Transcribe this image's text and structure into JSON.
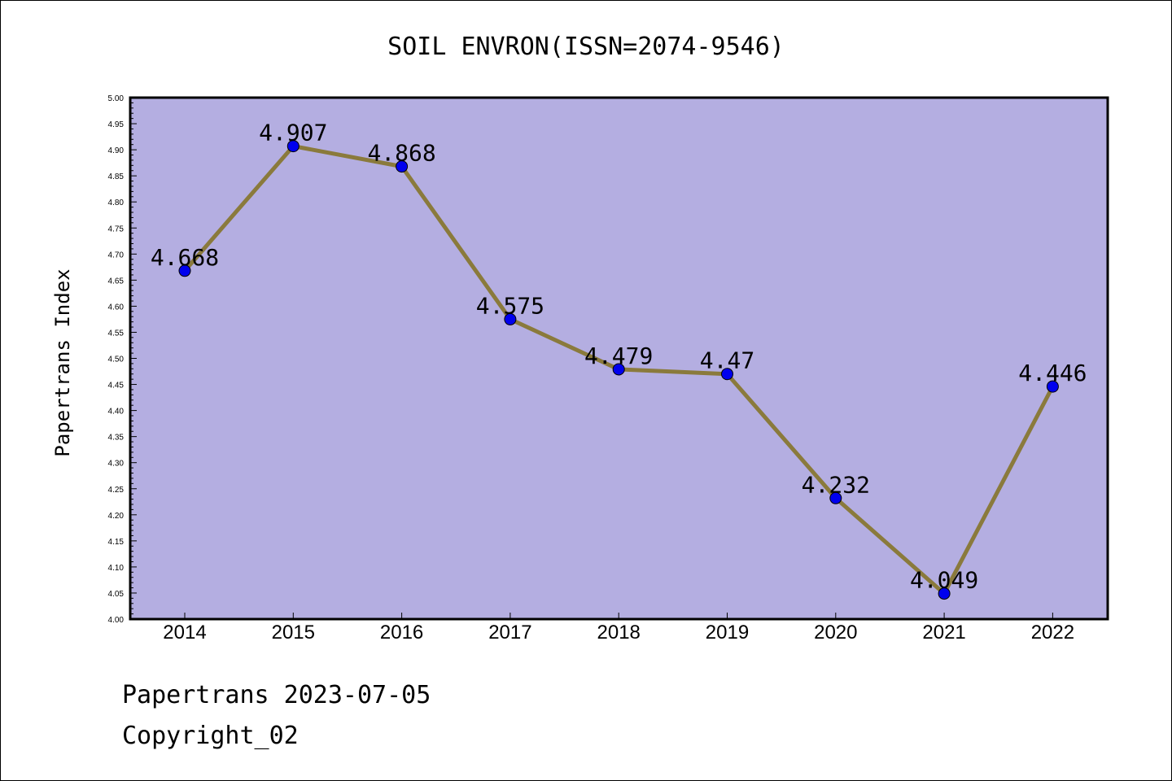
{
  "chart_data": {
    "type": "line",
    "title": "SOIL ENVRON(ISSN=2074-9546)",
    "xlabel": "",
    "ylabel": "Papertrans Index",
    "categories": [
      "2014",
      "2015",
      "2016",
      "2017",
      "2018",
      "2019",
      "2020",
      "2021",
      "2022"
    ],
    "values": [
      4.668,
      4.907,
      4.868,
      4.575,
      4.479,
      4.47,
      4.232,
      4.049,
      4.446
    ],
    "data_labels": [
      "4.668",
      "4.907",
      "4.868",
      "4.575",
      "4.479",
      "4.47",
      "4.232",
      "4.049",
      "4.446"
    ],
    "ylim": [
      4.0,
      5.0
    ],
    "yticks": [
      "4.00",
      "4.05",
      "4.10",
      "4.15",
      "4.20",
      "4.25",
      "4.30",
      "4.35",
      "4.40",
      "4.45",
      "4.50",
      "4.55",
      "4.60",
      "4.65",
      "4.70",
      "4.75",
      "4.80",
      "4.85",
      "4.90",
      "4.95",
      "5.00"
    ],
    "grid": false,
    "colors": {
      "plot_background": "#b4aee1",
      "line": "#8a7a3c",
      "marker": "#0000ee"
    }
  },
  "footer": {
    "date_line": "Papertrans 2023-07-05",
    "copyright": "Copyright_02"
  }
}
